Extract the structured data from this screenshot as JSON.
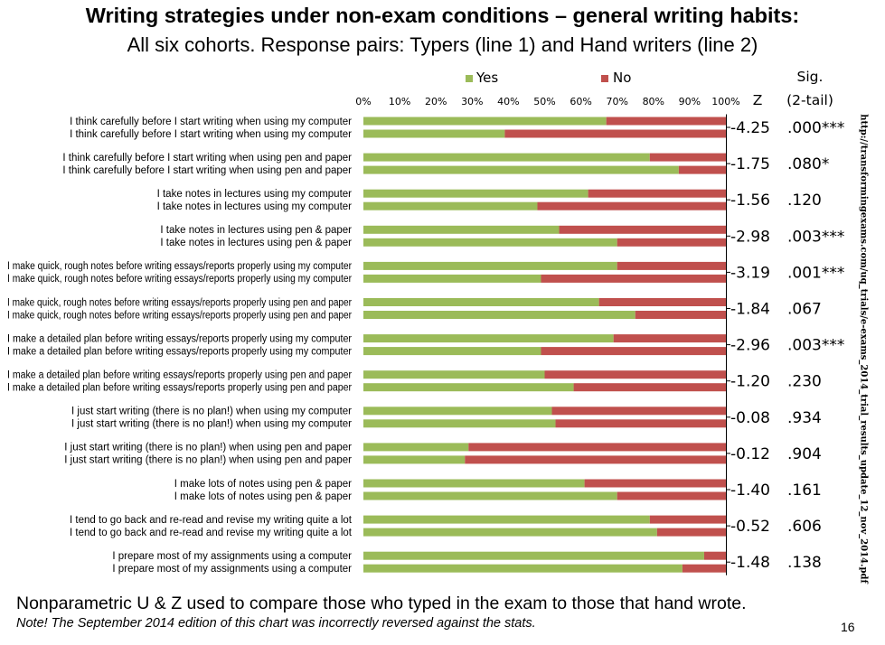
{
  "page": {
    "title": "Writing strategies under non-exam conditions – general writing habits:",
    "subtitle": "All six cohorts. Response pairs: Typers (line 1) and Hand writers (line 2)",
    "footnote": "Nonparametric U & Z used to compare those who typed in the exam to those that hand wrote.",
    "note": "Note! The September 2014 edition of this chart was incorrectly reversed against the stats.",
    "page_number": "16",
    "source_url": "http://transformingexams.com/uq_trials/e-exams_2014_trial_results_update_12_nov_2014.pdf"
  },
  "chart_data": {
    "type": "bar",
    "orientation": "horizontal",
    "stacked": true,
    "percent": true,
    "xlim": [
      0,
      100
    ],
    "x_ticks": [
      "0%",
      "10%",
      "20%",
      "30%",
      "40%",
      "50%",
      "60%",
      "70%",
      "80%",
      "90%",
      "100%"
    ],
    "legend_position": "top",
    "z_header": "Z",
    "sig_header_line1": "Sig.",
    "sig_header_line2": "(2-tail)",
    "series": [
      {
        "name": "Yes",
        "color": "#9bbb59"
      },
      {
        "name": "No",
        "color": "#c0504d"
      }
    ],
    "groups": [
      {
        "typer_label": "I think carefully before I start writing when using my computer",
        "hand_label": "I think carefully before I start writing when using my computer",
        "typer_yes": 67,
        "hand_yes": 39,
        "z": "-4.25",
        "sig": ".000***"
      },
      {
        "typer_label": "I think carefully before I start writing when using pen and paper",
        "hand_label": "I think carefully before I start writing when using pen and paper",
        "typer_yes": 79,
        "hand_yes": 87,
        "z": "-1.75",
        "sig": ".080*"
      },
      {
        "typer_label": "I take notes in lectures using my computer",
        "hand_label": "I take notes in lectures using my computer",
        "typer_yes": 62,
        "hand_yes": 48,
        "z": "-1.56",
        "sig": ".120"
      },
      {
        "typer_label": "I take notes in lectures using pen & paper",
        "hand_label": "I take notes in lectures using pen & paper",
        "typer_yes": 54,
        "hand_yes": 70,
        "z": "-2.98",
        "sig": ".003***"
      },
      {
        "typer_label": "I make quick, rough notes before writing essays/reports properly using my computer",
        "hand_label": "I make quick, rough notes before writing essays/reports properly using my computer",
        "typer_yes": 70,
        "hand_yes": 49,
        "z": "-3.19",
        "sig": ".001***"
      },
      {
        "typer_label": "I make quick, rough notes before writing essays/reports properly using pen and paper",
        "hand_label": "I make quick, rough notes before writing essays/reports properly using pen and paper",
        "typer_yes": 65,
        "hand_yes": 75,
        "z": "-1.84",
        "sig": ".067"
      },
      {
        "typer_label": "I make a detailed plan before writing essays/reports properly using my computer",
        "hand_label": "I make a detailed plan before writing essays/reports properly using my computer",
        "typer_yes": 69,
        "hand_yes": 49,
        "z": "-2.96",
        "sig": ".003***"
      },
      {
        "typer_label": "I make a detailed plan before writing essays/reports properly using pen and paper",
        "hand_label": "I make a detailed plan before writing essays/reports properly using pen and paper",
        "typer_yes": 50,
        "hand_yes": 58,
        "z": "-1.20",
        "sig": ".230"
      },
      {
        "typer_label": "I just start writing (there is no plan!) when using my computer",
        "hand_label": "I just start writing (there is no plan!) when using my computer",
        "typer_yes": 52,
        "hand_yes": 53,
        "z": "-0.08",
        "sig": ".934"
      },
      {
        "typer_label": "I just start writing (there is no plan!) when using pen and paper",
        "hand_label": "I just start writing (there is no plan!) when using pen and paper",
        "typer_yes": 29,
        "hand_yes": 28,
        "z": "-0.12",
        "sig": ".904"
      },
      {
        "typer_label": "I make lots of notes using pen & paper",
        "hand_label": "I make lots of notes using pen & paper",
        "typer_yes": 61,
        "hand_yes": 70,
        "z": "-1.40",
        "sig": ".161"
      },
      {
        "typer_label": "I tend to go back and re-read and revise my writing quite a lot",
        "hand_label": "I tend to go back and re-read and revise my writing quite a lot",
        "typer_yes": 79,
        "hand_yes": 81,
        "z": "-0.52",
        "sig": ".606"
      },
      {
        "typer_label": "I prepare most of my assignments using a computer",
        "hand_label": "I prepare most of my assignments using a computer",
        "typer_yes": 94,
        "hand_yes": 88,
        "z": "-1.48",
        "sig": ".138"
      }
    ]
  }
}
